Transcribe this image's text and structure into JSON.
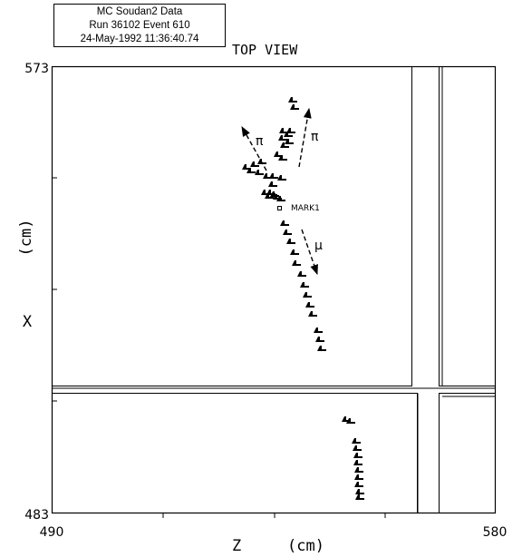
{
  "header": {
    "line1": "MC Soudan2 Data",
    "line2": "Run 36102 Event 610",
    "line3": "24-May-1992 11:36:40.74",
    "view_label": "TOP VIEW"
  },
  "axes": {
    "x_axis_label_symbol": "Z",
    "x_axis_label_unit": "(cm)",
    "y_axis_label_symbol": "X",
    "y_axis_label_unit": "(cm)",
    "x_range": [
      490,
      580
    ],
    "y_range": [
      483,
      573
    ],
    "x_tick_labels": [
      "490",
      "580"
    ],
    "y_tick_labels": [
      "573",
      "483"
    ]
  },
  "annotations": {
    "pi_left": "π",
    "pi_right": "π",
    "mu": "μ",
    "mark": "MARK1"
  }
}
